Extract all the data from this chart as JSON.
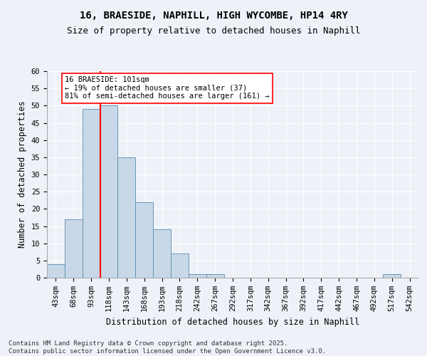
{
  "title_line1": "16, BRAESIDE, NAPHILL, HIGH WYCOMBE, HP14 4RY",
  "title_line2": "Size of property relative to detached houses in Naphill",
  "xlabel": "Distribution of detached houses by size in Naphill",
  "ylabel": "Number of detached properties",
  "bin_labels": [
    "43sqm",
    "68sqm",
    "93sqm",
    "118sqm",
    "143sqm",
    "168sqm",
    "193sqm",
    "218sqm",
    "242sqm",
    "267sqm",
    "292sqm",
    "317sqm",
    "342sqm",
    "367sqm",
    "392sqm",
    "417sqm",
    "442sqm",
    "467sqm",
    "492sqm",
    "517sqm",
    "542sqm"
  ],
  "bar_values": [
    4,
    17,
    49,
    50,
    35,
    22,
    14,
    7,
    1,
    1,
    0,
    0,
    0,
    0,
    0,
    0,
    0,
    0,
    0,
    1,
    0
  ],
  "bar_color": "#c8d8e8",
  "bar_edge_color": "#5a8ab0",
  "vline_color": "red",
  "vline_pos": 2,
  "annotation_text": "16 BRAESIDE: 101sqm\n← 19% of detached houses are smaller (37)\n81% of semi-detached houses are larger (161) →",
  "annotation_box_color": "white",
  "annotation_box_edge_color": "red",
  "ylim": [
    0,
    60
  ],
  "yticks": [
    0,
    5,
    10,
    15,
    20,
    25,
    30,
    35,
    40,
    45,
    50,
    55,
    60
  ],
  "footnote": "Contains HM Land Registry data © Crown copyright and database right 2025.\nContains public sector information licensed under the Open Government Licence v3.0.",
  "background_color": "#eef2f8",
  "grid_color": "white",
  "title_fontsize": 10,
  "subtitle_fontsize": 9,
  "axis_label_fontsize": 8.5,
  "tick_fontsize": 7.5,
  "annotation_fontsize": 7.5,
  "footnote_fontsize": 6.5
}
